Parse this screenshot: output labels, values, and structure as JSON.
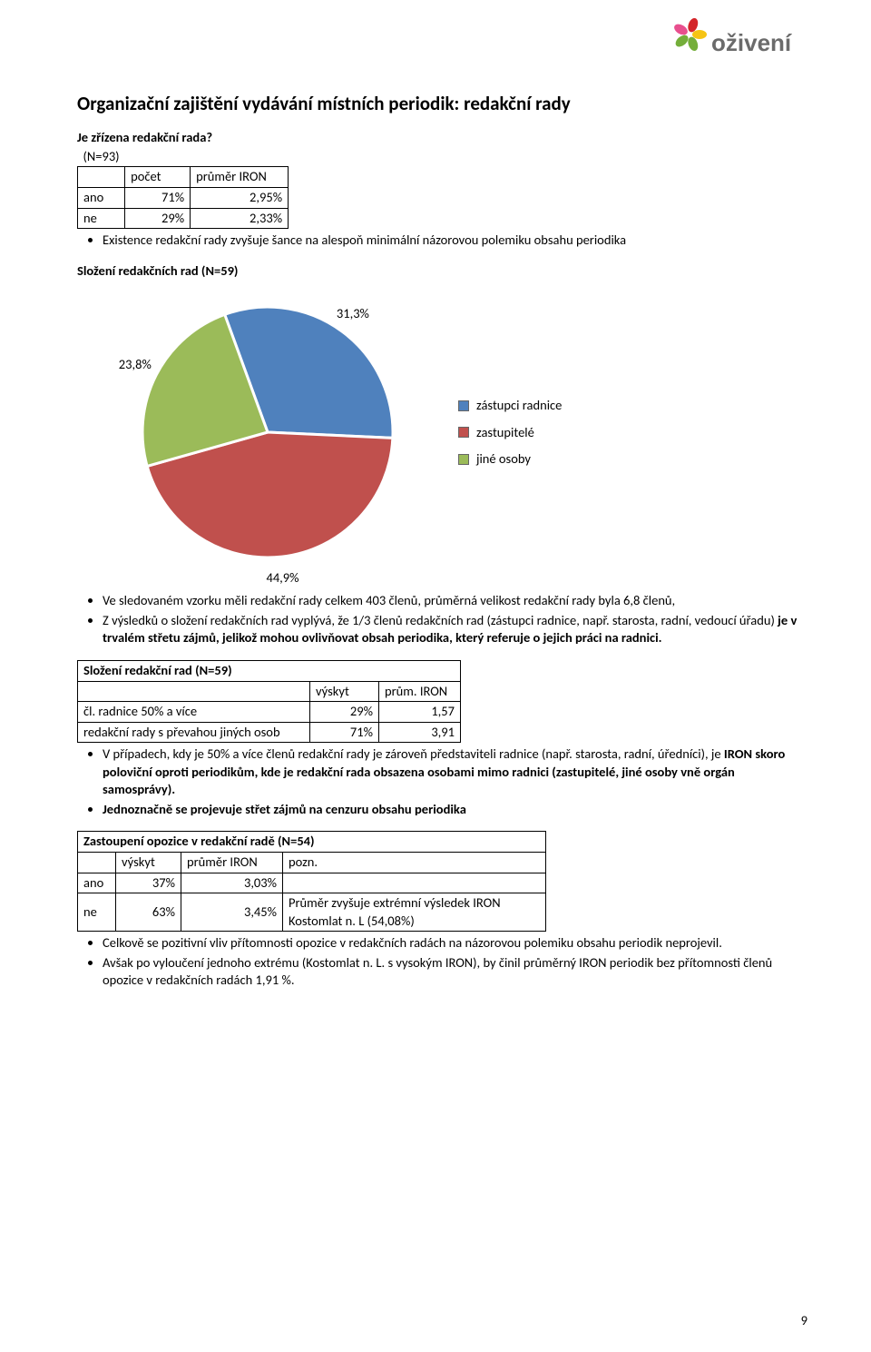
{
  "logo_text": "oživení",
  "logo_colors": {
    "red": "#d4252a",
    "yellow": "#f6c414",
    "green": "#74ae3a",
    "pink": "#e84f8e",
    "text": "#6b6b6b"
  },
  "title": "Organizační zajištění vydávání místních periodik: redakční rady",
  "subhead1": "Je zřízena redakční rada?",
  "table1": {
    "caption": "(N=93)",
    "cols": [
      "",
      "počet",
      "průměr IRON"
    ],
    "rows": [
      [
        "ano",
        "71%",
        "2,95%"
      ],
      [
        "ne",
        "29%",
        "2,33%"
      ]
    ],
    "col_widths": [
      "52px",
      "72px",
      "108px"
    ]
  },
  "bullets1": [
    "Existence redakční rady zvyšuje šance na alespoň minimální názorovou polemiku obsahu periodika"
  ],
  "subhead2": "Složení redakčních rad (N=59)",
  "pie": {
    "type": "pie",
    "values": [
      31.3,
      44.9,
      23.8
    ],
    "labels": [
      "31,3%",
      "44,9%",
      "23,8%"
    ],
    "legend": [
      "zástupci radnice",
      "zastupitelé",
      "jiné osoby"
    ],
    "colors": [
      "#4f81bd",
      "#c0504d",
      "#9bbb59"
    ],
    "legend_swatch_border": "#666666",
    "bg": "#ffffff"
  },
  "bullets2": [
    "Ve sledovaném vzorku měli redakční rady celkem 403 členů, průměrná velikost redakční rady byla 6,8 členů,",
    "Z výsledků o složení redakčních rad vyplývá, že 1/3 členů redakčních rad (zástupci radnice, např. starosta, radní, vedoucí úřadu) <b>je v trvalém střetu zájmů, jelikož mohou ovlivňovat obsah periodika, který referuje o jejich práci na radnici.</b>"
  ],
  "table2": {
    "caption": "Složení redakční rad (N=59)",
    "cols": [
      "",
      "výskyt",
      "prům. IRON"
    ],
    "rows": [
      [
        "čl. radnice 50% a více",
        "29%",
        "1,57"
      ],
      [
        "redakční rady s převahou jiných osob",
        "71%",
        "3,91"
      ]
    ],
    "col_widths": [
      "256px",
      "76px",
      "90px"
    ]
  },
  "bullets3": [
    "V případech, kdy je 50% a více členů redakční rady je zároveň představiteli radnice (např. starosta, radní, úředníci), je <b>IRON skoro poloviční oproti periodikům, kde je redakční rada obsazena osobami mimo radnici (zastupitelé, jiné osoby vně orgán samosprávy).</b>",
    "<b>Jednoznačně se projevuje střet zájmů na cenzuru obsahu periodika</b>"
  ],
  "table3": {
    "caption": "Zastoupení opozice v redakční radě (N=54)",
    "cols": [
      "",
      "výskyt",
      "průměr IRON",
      "pozn."
    ],
    "rows": [
      [
        "ano",
        "37%",
        "3,03%",
        ""
      ],
      [
        "ne",
        "63%",
        "3,45%",
        "Průměr zvyšuje extrémní výsledek IRON Kostomlat n. L (54,08%)"
      ]
    ],
    "col_widths": [
      "42px",
      "72px",
      "112px",
      "290px"
    ]
  },
  "bullets4": [
    "Celkově se pozitivní vliv přítomnosti opozice v redakčních radách na názorovou polemiku obsahu periodik neprojevil.",
    "Avšak po vyloučení jednoho extrému (Kostomlat n. L. s vysokým IRON), by činil průměrný IRON periodik bez přítomnosti členů opozice v redakčních radách 1,91 %."
  ],
  "page_number": "9"
}
